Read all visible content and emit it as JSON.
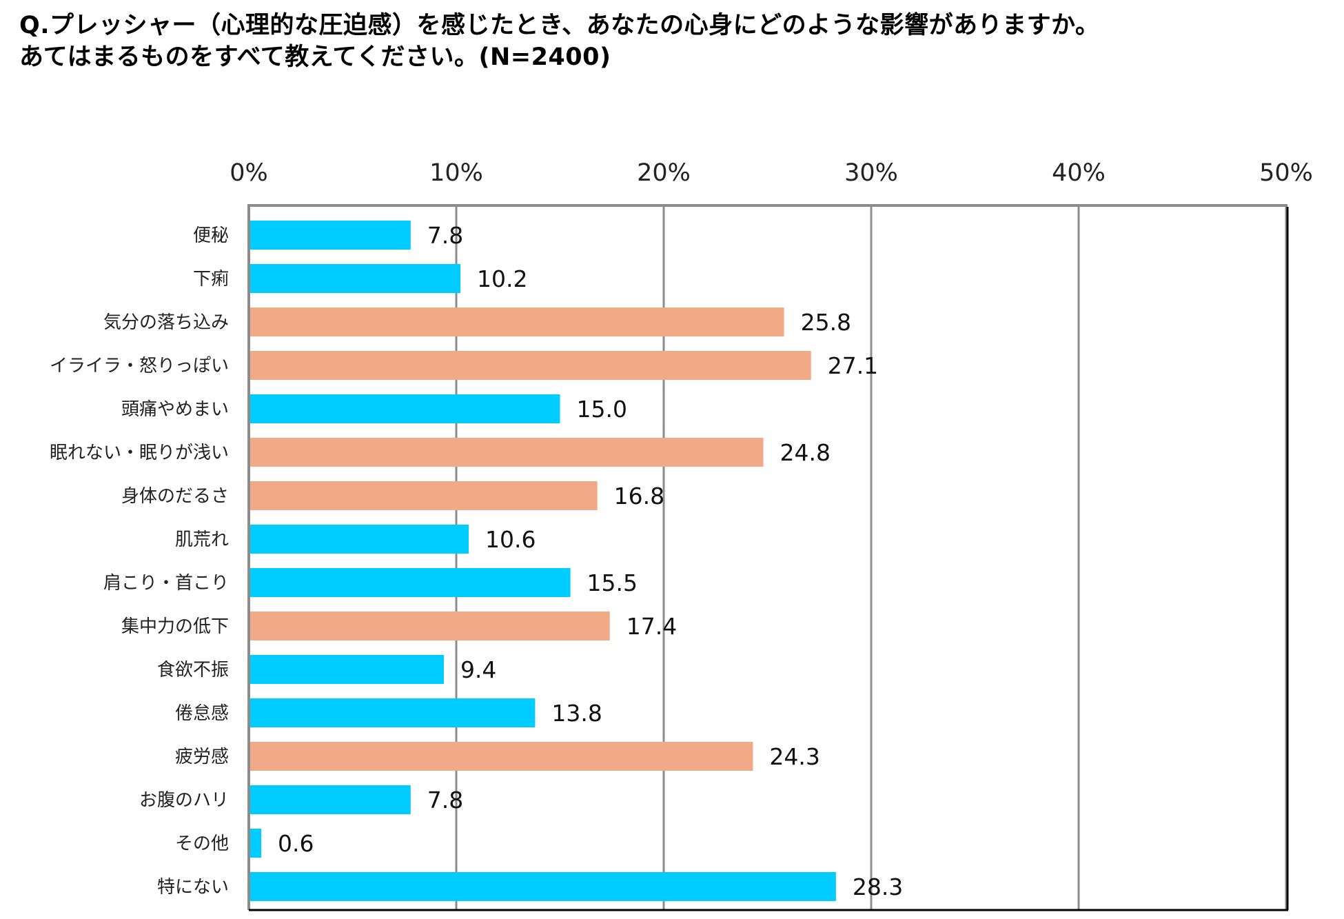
{
  "title": {
    "line1": "Q.プレッシャー（心理的な圧迫感）を感じたとき、あなたの心身にどのような影響がありますか。",
    "line2": "あてはまるものをすべて教えてください。(N=2400)"
  },
  "colors": {
    "blue": "#00CCFF",
    "orange": "#F0AA88",
    "grid": "#8C8C8C",
    "axis": "#000000"
  },
  "chart_data": {
    "type": "bar",
    "orientation": "horizontal",
    "title": "Q.プレッシャー（心理的な圧迫感）を感じたとき、あなたの心身にどのような影響がありますか。あてはまるものをすべて教えてください。(N=2400)",
    "xlabel": "",
    "ylabel": "",
    "xlim": [
      0,
      50
    ],
    "xticks": [
      0,
      10,
      20,
      30,
      40,
      50
    ],
    "xtick_labels": [
      "0%",
      "10%",
      "20%",
      "30%",
      "40%",
      "50%"
    ],
    "x_axis_position": "top",
    "grid": true,
    "legend": "none",
    "categories": [
      "便秘",
      "下痢",
      "気分の落ち込み",
      "イライラ・怒りっぽい",
      "頭痛やめまい",
      "眠れない・眠りが浅い",
      "身体のだるさ",
      "肌荒れ",
      "肩こり・首こり",
      "集中力の低下",
      "食欲不振",
      "倦怠感",
      "疲労感",
      "お腹のハリ",
      "その他",
      "特にない"
    ],
    "values": [
      7.8,
      10.2,
      25.8,
      27.1,
      15.0,
      24.8,
      16.8,
      10.6,
      15.5,
      17.4,
      9.4,
      13.8,
      24.3,
      7.8,
      0.6,
      28.3
    ],
    "value_labels": [
      "7.8",
      "10.2",
      "25.8",
      "27.1",
      "15.0",
      "24.8",
      "16.8",
      "10.6",
      "15.5",
      "17.4",
      "9.4",
      "13.8",
      "24.3",
      "7.8",
      "0.6",
      "28.3"
    ],
    "bar_colors": [
      "blue",
      "blue",
      "orange",
      "orange",
      "blue",
      "orange",
      "orange",
      "blue",
      "blue",
      "orange",
      "blue",
      "blue",
      "orange",
      "blue",
      "blue",
      "blue"
    ]
  }
}
